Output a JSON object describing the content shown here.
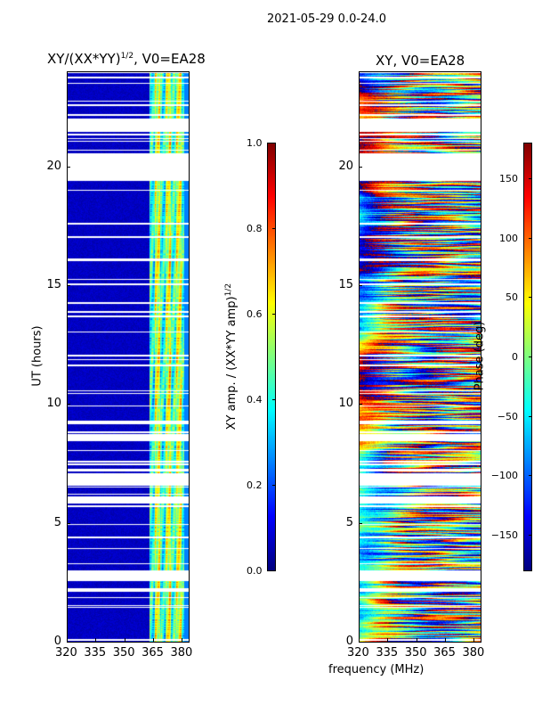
{
  "chart_data": [
    {
      "type": "heatmap",
      "title": "XY/(XX*YY)^1/2, V0=EA28",
      "title_main": "XY/(XX*YY)",
      "title_sup": "1/2",
      "title_tail": ", V0=EA28",
      "xlabel": "frequency (MHz)",
      "ylabel": "UT (hours)",
      "xlim": [
        320,
        383.5
      ],
      "ylim": [
        0,
        24
      ],
      "xticks": [
        "320",
        "335",
        "350",
        "365",
        "380"
      ],
      "xtick_values": [
        320,
        335,
        350,
        365,
        380
      ],
      "yticks": [
        "0",
        "5",
        "10",
        "15",
        "20"
      ],
      "ytick_values": [
        0,
        5,
        10,
        15,
        20
      ],
      "colormap": "jet",
      "colorbar": {
        "label_main": "XY amp. / (XX*YY amp)",
        "label_sup": "1/2",
        "range": [
          0.0,
          1.0
        ],
        "ticks": [
          "0.0",
          "0.2",
          "0.4",
          "0.6",
          "0.8",
          "1.0"
        ],
        "tick_values": [
          0.0,
          0.2,
          0.4,
          0.6,
          0.8,
          1.0
        ]
      },
      "description_values": {
        "low_freq_level": 0.05,
        "high_freq_band_start_mhz": 363,
        "high_freq_level_range": [
          0.3,
          0.7
        ]
      }
    },
    {
      "type": "heatmap",
      "title": "XY, V0=EA28",
      "xlabel": "frequency (MHz)",
      "ylabel": "",
      "xlim": [
        320,
        383.5
      ],
      "ylim": [
        0,
        24
      ],
      "xticks": [
        "320",
        "335",
        "350",
        "365",
        "380"
      ],
      "xtick_values": [
        320,
        335,
        350,
        365,
        380
      ],
      "yticks": [
        "0",
        "5",
        "10",
        "15",
        "20"
      ],
      "ytick_values": [
        0,
        5,
        10,
        15,
        20
      ],
      "colormap": "jet",
      "colorbar": {
        "label": "Phase (deg)",
        "range": [
          -180,
          180
        ],
        "ticks": [
          "−150",
          "−100",
          "−50",
          "0",
          "50",
          "100",
          "150"
        ],
        "tick_values": [
          -150,
          -100,
          -50,
          0,
          50,
          100,
          150
        ]
      }
    }
  ],
  "suptitle": "2021-05-29 0.0-24.0",
  "shared_xlabel": "frequency (MHz)",
  "flagged_ut_intervals": [
    [
      21.45,
      22.0
    ],
    [
      19.4,
      20.55
    ],
    [
      8.45,
      8.7
    ],
    [
      6.55,
      7.1
    ],
    [
      5.8,
      6.1
    ],
    [
      2.55,
      3.0
    ]
  ]
}
